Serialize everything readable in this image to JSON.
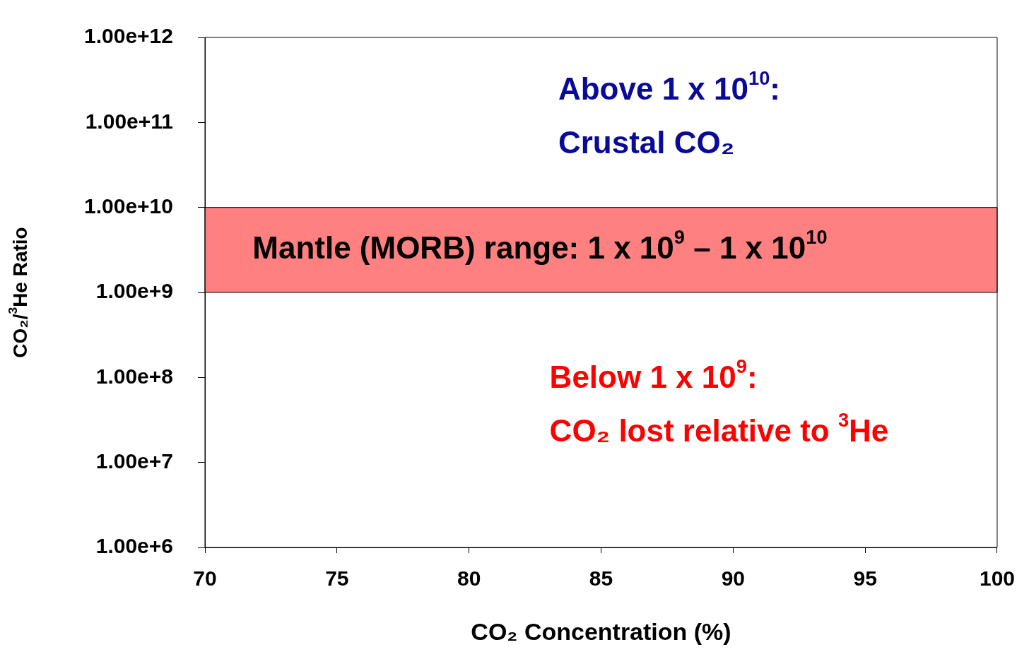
{
  "chart_data": {
    "type": "scatter",
    "xlabel": "CO₂ Concentration (%)",
    "ylabel": "CO₂/$^{3}$He Ratio",
    "log": "y",
    "grid": false,
    "xlim": [
      70,
      100
    ],
    "xticks": [
      70,
      75,
      80,
      85,
      90,
      95,
      100
    ],
    "ylim": [
      1000000,
      1000000000000
    ],
    "yticks": [
      {
        "value": 1000000,
        "label": "1.00e+6"
      },
      {
        "value": 10000000,
        "label": "1.00e+7"
      },
      {
        "value": 100000000,
        "label": "1.00e+8"
      },
      {
        "value": 1000000000,
        "label": "1.00e+9"
      },
      {
        "value": 10000000000,
        "label": "1.00e+10"
      },
      {
        "value": 100000000000,
        "label": "1.00e+11"
      },
      {
        "value": 1000000000000,
        "label": "1.00e+12"
      }
    ],
    "bands": [
      {
        "axis": "y",
        "from": 1000000000,
        "to": 10000000000,
        "label": "Mantle (MORB) range: 1 x 10$^{9}$ – 1 x 10$^{10}$",
        "color": "#ff8080"
      }
    ],
    "annotations": [
      "Above 1 x 10$^{10}$:",
      "Crustal CO₂",
      "Below 1 x 10$^{9}$:",
      "CO₂ lost relative to $^{3}$He"
    ]
  }
}
